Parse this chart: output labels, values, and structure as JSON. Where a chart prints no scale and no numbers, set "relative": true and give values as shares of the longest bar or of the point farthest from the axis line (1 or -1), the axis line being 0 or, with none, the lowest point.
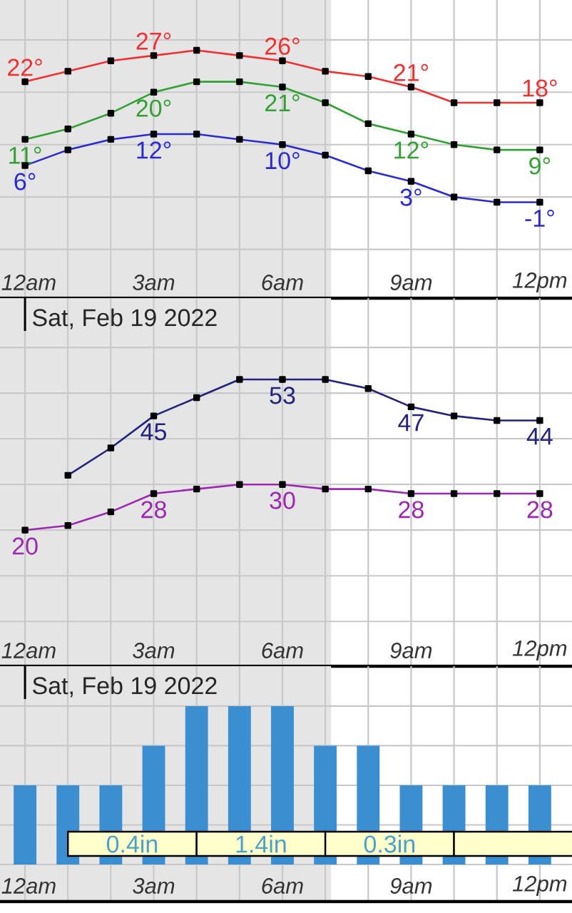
{
  "chart_data": [
    {
      "type": "line",
      "x": [
        "2022-02-19T00:00",
        "2022-02-19T01:00",
        "2022-02-19T02:00",
        "2022-02-19T03:00",
        "2022-02-19T04:00",
        "2022-02-19T05:00",
        "2022-02-19T06:00",
        "2022-02-19T07:00",
        "2022-02-19T08:00",
        "2022-02-19T09:00",
        "2022-02-19T10:00",
        "2022-02-19T11:00",
        "2022-02-19T12:00"
      ],
      "xlim": [
        "2022-02-18T23:25",
        "2022-02-19T12:45"
      ],
      "xticks": [
        {
          "value": "2022-02-19T00:00",
          "label": "12am"
        },
        {
          "value": "2022-02-19T01:00",
          "label": null
        },
        {
          "value": "2022-02-19T02:00",
          "label": null
        },
        {
          "value": "2022-02-19T03:00",
          "label": "3am"
        },
        {
          "value": "2022-02-19T04:00",
          "label": null
        },
        {
          "value": "2022-02-19T05:00",
          "label": null
        },
        {
          "value": "2022-02-19T06:00",
          "label": "6am"
        },
        {
          "value": "2022-02-19T07:00",
          "label": null
        },
        {
          "value": "2022-02-19T08:00",
          "label": null
        },
        {
          "value": "2022-02-19T09:00",
          "label": "9am"
        },
        {
          "value": "2022-02-19T10:00",
          "label": null
        },
        {
          "value": "2022-02-19T11:00",
          "label": null
        },
        {
          "value": "2022-02-19T12:00",
          "label": "12pm"
        }
      ],
      "ylim": [
        -19.3,
        37.6
      ],
      "yticks": [
        {
          "value": -10,
          "label": null
        },
        {
          "value": 0,
          "label": null
        },
        {
          "value": 10,
          "label": null
        },
        {
          "value": 20,
          "label": null
        },
        {
          "value": 30,
          "label": null
        }
      ],
      "tick_labels": "x",
      "grid": true,
      "marker": "square",
      "bands": [
        {
          "axis": "x",
          "from": "2022-02-18T23:25",
          "to": "2022-02-19T07:08",
          "color": "#e5e5e5"
        }
      ],
      "series": [
        {
          "color": "#f03030",
          "values": [
            22,
            24,
            26,
            27,
            28,
            27,
            26,
            24,
            23,
            21,
            18,
            18,
            18
          ],
          "value_labels": [
            "22°",
            null,
            null,
            "27°",
            null,
            null,
            "26°",
            null,
            null,
            "21°",
            null,
            null,
            "18°"
          ]
        },
        {
          "color": "#33a033",
          "values": [
            11,
            13,
            16,
            20,
            22,
            22,
            21,
            18,
            14,
            12,
            10,
            9,
            9
          ],
          "value_labels": [
            "11°",
            null,
            null,
            "20°",
            null,
            null,
            "21°",
            null,
            null,
            "12°",
            null,
            null,
            "9°"
          ]
        },
        {
          "color": "#2a2ad0",
          "values": [
            6,
            9,
            11,
            12,
            12,
            11,
            10,
            8,
            5,
            3,
            0,
            -1,
            -1
          ],
          "value_labels": [
            "6°",
            null,
            null,
            "12°",
            null,
            null,
            "10°",
            null,
            null,
            "3°",
            null,
            null,
            "-1°"
          ]
        }
      ]
    },
    {
      "type": "line",
      "x": [
        "2022-02-19T00:00",
        "2022-02-19T01:00",
        "2022-02-19T02:00",
        "2022-02-19T03:00",
        "2022-02-19T04:00",
        "2022-02-19T05:00",
        "2022-02-19T06:00",
        "2022-02-19T07:00",
        "2022-02-19T08:00",
        "2022-02-19T09:00",
        "2022-02-19T10:00",
        "2022-02-19T11:00",
        "2022-02-19T12:00"
      ],
      "xlim": [
        "2022-02-18T23:25",
        "2022-02-19T12:45"
      ],
      "xticks": [
        {
          "value": "2022-02-19T00:00",
          "label": "12am"
        },
        {
          "value": "2022-02-19T01:00",
          "label": null
        },
        {
          "value": "2022-02-19T02:00",
          "label": null
        },
        {
          "value": "2022-02-19T03:00",
          "label": "3am"
        },
        {
          "value": "2022-02-19T04:00",
          "label": null
        },
        {
          "value": "2022-02-19T05:00",
          "label": null
        },
        {
          "value": "2022-02-19T06:00",
          "label": "6am"
        },
        {
          "value": "2022-02-19T07:00",
          "label": null
        },
        {
          "value": "2022-02-19T08:00",
          "label": null
        },
        {
          "value": "2022-02-19T09:00",
          "label": "9am"
        },
        {
          "value": "2022-02-19T10:00",
          "label": null
        },
        {
          "value": "2022-02-19T11:00",
          "label": null
        },
        {
          "value": "2022-02-19T12:00",
          "label": "12pm"
        }
      ],
      "ylim": [
        -9.8,
        70.8
      ],
      "yticks": [
        {
          "value": 0,
          "label": null
        },
        {
          "value": 10,
          "label": null
        },
        {
          "value": 20,
          "label": null
        },
        {
          "value": 30,
          "label": null
        },
        {
          "value": 40,
          "label": null
        },
        {
          "value": 50,
          "label": null
        },
        {
          "value": 60,
          "label": null
        }
      ],
      "tick_labels": "x",
      "grid": true,
      "marker": "square",
      "bands": [
        {
          "axis": "x",
          "from": "2022-02-18T23:25",
          "to": "2022-02-19T07:08",
          "color": "#e5e5e5"
        }
      ],
      "ref_lines": [
        {
          "axis": "x",
          "value": "2022-02-19T00:00",
          "label": "Sat, Feb 19 2022",
          "color": "#000000"
        }
      ],
      "series": [
        {
          "color": "#23237e",
          "values": [
            null,
            32,
            38,
            45,
            49,
            53,
            53,
            53,
            51,
            47,
            45,
            44,
            44
          ],
          "value_labels": [
            null,
            null,
            null,
            "45",
            null,
            null,
            "53",
            null,
            null,
            "47",
            null,
            null,
            "44"
          ]
        },
        {
          "color": "#9c27b0",
          "values": [
            20,
            21,
            24,
            28,
            29,
            30,
            30,
            29,
            29,
            28,
            28,
            28,
            28
          ],
          "value_labels": [
            "20",
            null,
            null,
            "28",
            null,
            null,
            "30",
            null,
            null,
            "28",
            null,
            null,
            "28"
          ]
        }
      ]
    },
    {
      "type": "bar",
      "relative": true,
      "x": [
        "2022-02-19T00:00",
        "2022-02-19T01:00",
        "2022-02-19T02:00",
        "2022-02-19T03:00",
        "2022-02-19T04:00",
        "2022-02-19T05:00",
        "2022-02-19T06:00",
        "2022-02-19T07:00",
        "2022-02-19T08:00",
        "2022-02-19T09:00",
        "2022-02-19T10:00",
        "2022-02-19T11:00",
        "2022-02-19T12:00"
      ],
      "xlim": [
        "2022-02-18T23:25",
        "2022-02-19T12:45"
      ],
      "xticks": [
        {
          "value": "2022-02-19T00:00",
          "label": "12am"
        },
        {
          "value": "2022-02-19T01:00",
          "label": null
        },
        {
          "value": "2022-02-19T02:00",
          "label": null
        },
        {
          "value": "2022-02-19T03:00",
          "label": "3am"
        },
        {
          "value": "2022-02-19T04:00",
          "label": null
        },
        {
          "value": "2022-02-19T05:00",
          "label": null
        },
        {
          "value": "2022-02-19T06:00",
          "label": "6am"
        },
        {
          "value": "2022-02-19T07:00",
          "label": null
        },
        {
          "value": "2022-02-19T08:00",
          "label": null
        },
        {
          "value": "2022-02-19T09:00",
          "label": "9am"
        },
        {
          "value": "2022-02-19T10:00",
          "label": null
        },
        {
          "value": "2022-02-19T11:00",
          "label": null
        },
        {
          "value": "2022-02-19T12:00",
          "label": "12pm"
        }
      ],
      "tick_labels": "x",
      "grid": true,
      "color": "#3b8fd0",
      "values": [
        0.5,
        0.5,
        0.5,
        0.75,
        1,
        1,
        1,
        0.75,
        0.75,
        0.5,
        0.5,
        0.5,
        0.5
      ],
      "bands": [
        {
          "axis": "x",
          "from": "2022-02-18T23:25",
          "to": "2022-02-19T07:08",
          "color": "#e5e5e5"
        },
        {
          "axis": "x",
          "from": "2022-02-19T01:00",
          "to": "2022-02-19T04:00",
          "label": "0.4in",
          "color": "#ffffcc"
        },
        {
          "axis": "x",
          "from": "2022-02-19T04:00",
          "to": "2022-02-19T07:00",
          "label": "1.4in",
          "color": "#ffffcc"
        },
        {
          "axis": "x",
          "from": "2022-02-19T07:00",
          "to": "2022-02-19T10:00",
          "label": "0.3in",
          "color": "#ffffcc"
        },
        {
          "axis": "x",
          "from": "2022-02-19T10:00",
          "to": "2022-02-19T12:45",
          "color": "#ffffcc"
        }
      ],
      "ref_lines": [
        {
          "axis": "x",
          "value": "2022-02-19T00:00",
          "label": "Sat, Feb 19 2022",
          "color": "#000000"
        }
      ]
    }
  ]
}
